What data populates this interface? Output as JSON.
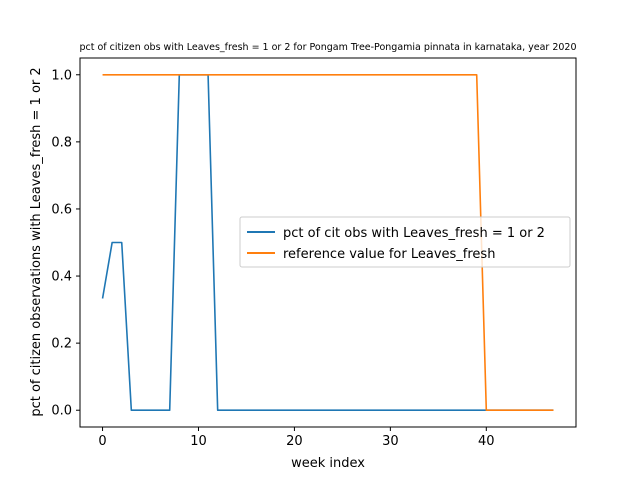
{
  "chart_data": {
    "type": "line",
    "title": "pct of citizen obs with Leaves_fresh = 1 or 2 for Pongam Tree-Pongamia pinnata in karnataka, year 2020",
    "xlabel": "week index",
    "ylabel": "pct of citizen observations with Leaves_fresh = 1 or 2",
    "xlim": [
      -2.35,
      49.35
    ],
    "ylim": [
      -0.05,
      1.05
    ],
    "xticks": [
      0,
      10,
      20,
      30,
      40
    ],
    "yticks": [
      0.0,
      0.2,
      0.4,
      0.6,
      0.8,
      1.0
    ],
    "xtick_labels": [
      "0",
      "10",
      "20",
      "30",
      "40"
    ],
    "ytick_labels": [
      "0.0",
      "0.2",
      "0.4",
      "0.6",
      "0.8",
      "1.0"
    ],
    "grid": false,
    "legend_position": "center-right",
    "series": [
      {
        "name": "pct of cit obs with Leaves_fresh = 1 or 2",
        "color": "#1f77b4",
        "x": [
          0,
          1,
          2,
          3,
          4,
          5,
          6,
          7,
          8,
          9,
          10,
          11,
          12,
          13,
          14,
          15,
          16,
          17,
          18,
          19,
          20,
          21,
          22,
          23,
          24,
          25,
          26,
          27,
          28,
          29,
          30,
          31,
          32,
          33,
          34,
          35,
          36,
          37,
          38,
          39,
          40,
          41,
          42,
          43,
          44,
          45,
          46,
          47
        ],
        "y": [
          0.333,
          0.5,
          0.5,
          0,
          0,
          0,
          0,
          0,
          1,
          1,
          1,
          1,
          0,
          0,
          0,
          0,
          0,
          0,
          0,
          0,
          0,
          0,
          0,
          0,
          0,
          0,
          0,
          0,
          0,
          0,
          0,
          0,
          0,
          0,
          0,
          0,
          0,
          0,
          0,
          0,
          0,
          0,
          0,
          0,
          0,
          0,
          0,
          0
        ]
      },
      {
        "name": "reference value for Leaves_fresh",
        "color": "#ff7f0e",
        "x": [
          0,
          1,
          2,
          3,
          4,
          5,
          6,
          7,
          8,
          9,
          10,
          11,
          12,
          13,
          14,
          15,
          16,
          17,
          18,
          19,
          20,
          21,
          22,
          23,
          24,
          25,
          26,
          27,
          28,
          29,
          30,
          31,
          32,
          33,
          34,
          35,
          36,
          37,
          38,
          39,
          40,
          41,
          42,
          43,
          44,
          45,
          46,
          47
        ],
        "y": [
          1,
          1,
          1,
          1,
          1,
          1,
          1,
          1,
          1,
          1,
          1,
          1,
          1,
          1,
          1,
          1,
          1,
          1,
          1,
          1,
          1,
          1,
          1,
          1,
          1,
          1,
          1,
          1,
          1,
          1,
          1,
          1,
          1,
          1,
          1,
          1,
          1,
          1,
          1,
          1,
          0,
          0,
          0,
          0,
          0,
          0,
          0,
          0
        ]
      }
    ]
  }
}
